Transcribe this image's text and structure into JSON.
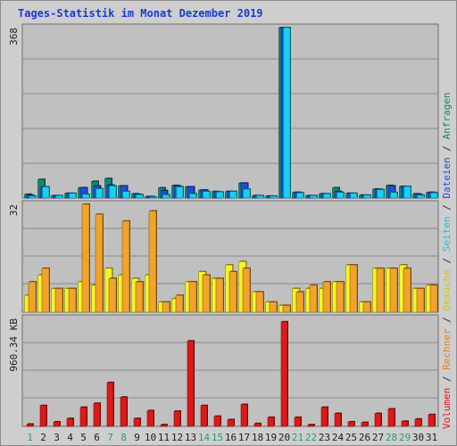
{
  "title": "Tages-Statistik im Monat Dezember 2019",
  "colors": {
    "hits": "#0f8a6b",
    "files": "#1f4ddc",
    "pages": "#1ad0f2",
    "visits": "#f5f522",
    "sites": "#f2a32a",
    "kbytes": "#e01818",
    "weekend_day": "#22a06a",
    "weekday": "#1c1c1c",
    "panel_bg": "#c0c0c0",
    "grid": "#8a8a8a"
  },
  "legend": [
    {
      "label": "Volumen",
      "color": "#e01818"
    },
    {
      "label": "Rechner",
      "color": "#f07d0e"
    },
    {
      "label": "Besuche",
      "color": "#d4c800"
    },
    {
      "label": "Seiten",
      "color": "#14c6e6"
    },
    {
      "label": "Dateien",
      "color": "#1f4ddc"
    },
    {
      "label": "Anfragen",
      "color": "#0f8a6b"
    }
  ],
  "legend_separator": " / ",
  "chart_data": [
    {
      "type": "bar",
      "panel": "requests",
      "max_label": "368",
      "ylim": [
        0,
        368
      ],
      "categories": [
        "1",
        "2",
        "3",
        "4",
        "5",
        "6",
        "7",
        "8",
        "9",
        "10",
        "11",
        "12",
        "13",
        "14",
        "15",
        "16",
        "17",
        "18",
        "19",
        "20",
        "21",
        "22",
        "23",
        "24",
        "25",
        "26",
        "27",
        "28",
        "29",
        "30",
        "31"
      ],
      "weekend_days": [
        "1",
        "7",
        "8",
        "14",
        "15",
        "21",
        "22",
        "28",
        "29"
      ],
      "series": [
        {
          "key": "hits",
          "name": "Anfragen",
          "values": [
            8,
            40,
            5,
            10,
            22,
            36,
            42,
            26,
            9,
            3,
            22,
            27,
            24,
            17,
            14,
            14,
            32,
            5,
            4,
            368,
            12,
            5,
            9,
            22,
            10,
            6,
            19,
            27,
            25,
            9,
            12
          ]
        },
        {
          "key": "files",
          "name": "Dateien",
          "values": [
            6,
            24,
            5,
            10,
            22,
            26,
            28,
            26,
            8,
            3,
            16,
            26,
            24,
            17,
            13,
            14,
            32,
            5,
            4,
            368,
            12,
            5,
            9,
            14,
            10,
            6,
            19,
            26,
            25,
            8,
            12
          ]
        },
        {
          "key": "pages",
          "name": "Seiten",
          "values": [
            4,
            24,
            5,
            10,
            8,
            20,
            26,
            14,
            7,
            2,
            7,
            24,
            9,
            14,
            13,
            14,
            19,
            5,
            4,
            368,
            11,
            5,
            9,
            12,
            10,
            6,
            18,
            12,
            25,
            6,
            11
          ]
        }
      ]
    },
    {
      "type": "bar",
      "panel": "visits",
      "max_label": "32",
      "ylim": [
        0,
        32
      ],
      "categories": [
        "1",
        "2",
        "3",
        "4",
        "5",
        "6",
        "7",
        "8",
        "9",
        "10",
        "11",
        "12",
        "13",
        "14",
        "15",
        "16",
        "17",
        "18",
        "19",
        "20",
        "21",
        "22",
        "23",
        "24",
        "25",
        "26",
        "27",
        "28",
        "29",
        "30",
        "31"
      ],
      "series": [
        {
          "key": "visits",
          "name": "Besuche",
          "values": [
            5,
            11,
            7,
            7,
            9,
            8,
            13,
            11,
            10,
            11,
            3,
            4,
            9,
            12,
            10,
            14,
            15,
            6,
            3,
            2,
            7,
            7,
            7,
            9,
            14,
            3,
            13,
            13,
            14,
            7,
            8
          ]
        },
        {
          "key": "sites",
          "name": "Rechner",
          "values": [
            9,
            13,
            7,
            7,
            32,
            29,
            10,
            27,
            9,
            30,
            3,
            5,
            9,
            11,
            10,
            12,
            13,
            6,
            3,
            2,
            6,
            8,
            9,
            9,
            14,
            3,
            13,
            13,
            13,
            7,
            8
          ]
        }
      ]
    },
    {
      "type": "bar",
      "panel": "volume",
      "max_label": "960.34 KB",
      "ylim": [
        0,
        960.34
      ],
      "unit": "KB",
      "categories": [
        "1",
        "2",
        "3",
        "4",
        "5",
        "6",
        "7",
        "8",
        "9",
        "10",
        "11",
        "12",
        "13",
        "14",
        "15",
        "16",
        "17",
        "18",
        "19",
        "20",
        "21",
        "22",
        "23",
        "24",
        "25",
        "26",
        "27",
        "28",
        "29",
        "30",
        "31"
      ],
      "series": [
        {
          "key": "kbytes",
          "name": "Volumen",
          "values": [
            20,
            185,
            40,
            70,
            170,
            205,
            390,
            260,
            70,
            140,
            15,
            135,
            760,
            185,
            90,
            60,
            195,
            25,
            80,
            930,
            80,
            15,
            170,
            115,
            40,
            35,
            115,
            155,
            45,
            65,
            105
          ]
        }
      ]
    }
  ]
}
